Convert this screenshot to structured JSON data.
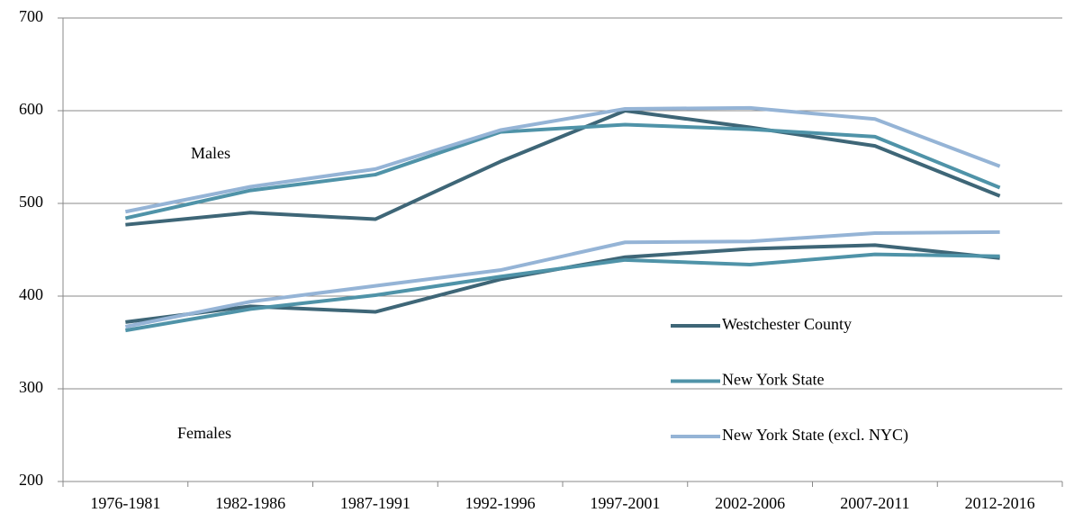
{
  "chart_data": {
    "type": "line",
    "categories": [
      "1976-1981",
      "1982-1986",
      "1987-1991",
      "1992-1996",
      "1997-2001",
      "2002-2006",
      "2007-2011",
      "2012-2016"
    ],
    "ylim": [
      200,
      700
    ],
    "yticks": [
      200,
      300,
      400,
      500,
      600,
      700
    ],
    "grid": true,
    "annotations": {
      "males": "Males",
      "females": "Females"
    },
    "series": [
      {
        "name": "Westchester County",
        "color": "#3e6677",
        "values": [
          477,
          490,
          483,
          545,
          600,
          582,
          562,
          508
        ],
        "female_values": [
          372,
          389,
          383,
          418,
          442,
          451,
          455,
          441
        ]
      },
      {
        "name": "New York State",
        "color": "#4f93a8",
        "values": [
          484,
          514,
          531,
          577,
          585,
          580,
          572,
          517
        ],
        "female_values": [
          363,
          386,
          401,
          421,
          439,
          434,
          445,
          443
        ]
      },
      {
        "name": "New York State (excl. NYC)",
        "color": "#95b4d6",
        "values": [
          491,
          518,
          537,
          579,
          602,
          603,
          591,
          540
        ],
        "female_values": [
          367,
          394,
          411,
          428,
          458,
          459,
          468,
          469
        ]
      }
    ]
  }
}
